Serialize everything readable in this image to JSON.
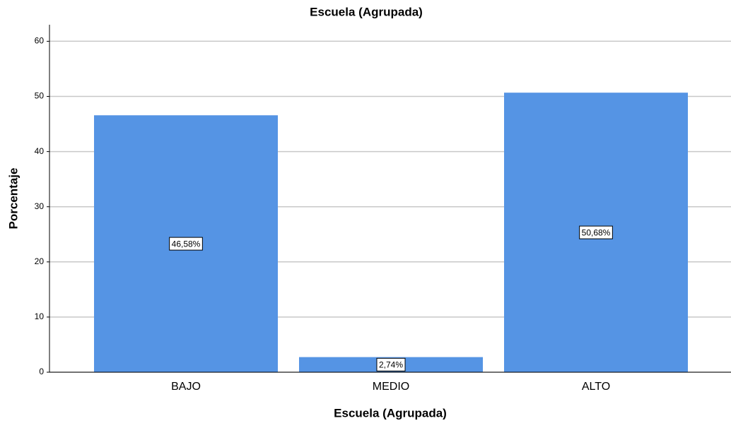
{
  "chart_data": {
    "type": "bar",
    "title": "Escuela (Agrupada)",
    "x_label": "Escuela (Agrupada)",
    "y_label": "Porcentaje",
    "categories": [
      "BAJO",
      "MEDIO",
      "ALTO"
    ],
    "values": [
      46.58,
      2.74,
      50.68
    ],
    "value_labels": [
      "46,58%",
      "2,74%",
      "50,68%"
    ],
    "color": "#5594e4",
    "ylim": [
      0,
      63
    ],
    "yticks": [
      0,
      10,
      20,
      30,
      40,
      50,
      60
    ],
    "grid": true
  }
}
